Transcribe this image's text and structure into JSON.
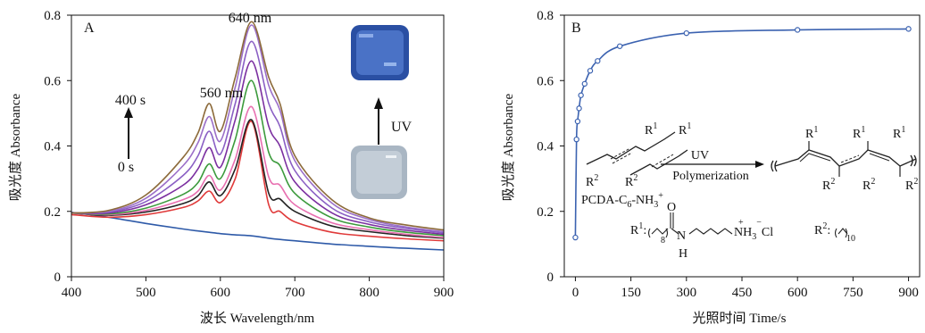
{
  "chart_data": [
    {
      "panel": "A",
      "type": "line",
      "xlabel": "波长 Wavelength/nm",
      "ylabel": "吸光度 Absorbance",
      "xlim": [
        400,
        900
      ],
      "ylim": [
        0,
        0.8
      ],
      "xticks": [
        "400",
        "500",
        "600",
        "700",
        "800",
        "900"
      ],
      "yticks": [
        "0",
        "0.2",
        "0.4",
        "0.6",
        "0.8"
      ],
      "annotations": {
        "peak_640": "640 nm",
        "peak_560": "560 nm",
        "time_top": "400 s",
        "time_bottom": "0 s",
        "uv": "UV"
      },
      "x": [
        400,
        450,
        500,
        550,
        570,
        585,
        600,
        620,
        642,
        665,
        680,
        700,
        750,
        800,
        850,
        900
      ],
      "series": [
        {
          "color": "#2E5AA8",
          "values": [
            0.197,
            0.182,
            0.163,
            0.146,
            0.14,
            0.136,
            0.132,
            0.128,
            0.125,
            0.118,
            0.114,
            0.11,
            0.1,
            0.093,
            0.087,
            0.082
          ]
        },
        {
          "color": "#E03A3A",
          "values": [
            0.19,
            0.182,
            0.19,
            0.212,
            0.232,
            0.262,
            0.227,
            0.3,
            0.475,
            0.22,
            0.2,
            0.168,
            0.136,
            0.124,
            0.116,
            0.11
          ]
        },
        {
          "color": "#222222",
          "values": [
            0.195,
            0.188,
            0.198,
            0.224,
            0.248,
            0.29,
            0.248,
            0.33,
            0.48,
            0.255,
            0.238,
            0.2,
            0.155,
            0.138,
            0.126,
            0.118
          ]
        },
        {
          "color": "#E86FB0",
          "values": [
            0.195,
            0.19,
            0.203,
            0.236,
            0.262,
            0.31,
            0.265,
            0.36,
            0.52,
            0.305,
            0.28,
            0.22,
            0.165,
            0.144,
            0.13,
            0.12
          ]
        },
        {
          "color": "#3C9A3C",
          "values": [
            0.195,
            0.192,
            0.21,
            0.252,
            0.288,
            0.345,
            0.3,
            0.42,
            0.6,
            0.38,
            0.34,
            0.255,
            0.18,
            0.152,
            0.136,
            0.126
          ]
        },
        {
          "color": "#7B2FA0",
          "values": [
            0.195,
            0.195,
            0.22,
            0.28,
            0.33,
            0.395,
            0.335,
            0.48,
            0.66,
            0.46,
            0.4,
            0.29,
            0.195,
            0.16,
            0.142,
            0.13
          ]
        },
        {
          "color": "#8A5FC4",
          "values": [
            0.195,
            0.198,
            0.23,
            0.31,
            0.37,
            0.445,
            0.375,
            0.53,
            0.72,
            0.53,
            0.46,
            0.325,
            0.21,
            0.168,
            0.148,
            0.134
          ]
        },
        {
          "color": "#9B6FC8",
          "values": [
            0.195,
            0.2,
            0.24,
            0.34,
            0.41,
            0.49,
            0.415,
            0.58,
            0.77,
            0.585,
            0.51,
            0.355,
            0.225,
            0.175,
            0.152,
            0.138
          ]
        },
        {
          "color": "#8C6A3A",
          "values": [
            0.195,
            0.203,
            0.25,
            0.365,
            0.44,
            0.53,
            0.445,
            0.61,
            0.78,
            0.61,
            0.53,
            0.37,
            0.235,
            0.18,
            0.158,
            0.143
          ]
        }
      ],
      "legend": "none"
    },
    {
      "panel": "B",
      "type": "line",
      "xlabel": "光照时间 Time/s",
      "ylabel": "吸光度 Absorbance",
      "xlim": [
        -30,
        930
      ],
      "ylim": [
        0,
        0.8
      ],
      "xticks": [
        "0",
        "150",
        "300",
        "450",
        "600",
        "750",
        "900"
      ],
      "yticks": [
        "0",
        "0.2",
        "0.4",
        "0.6",
        "0.8"
      ],
      "x": [
        0,
        3,
        6,
        10,
        15,
        25,
        40,
        60,
        120,
        300,
        600,
        900
      ],
      "series": [
        {
          "color": "#3B62B0",
          "values": [
            0.12,
            0.42,
            0.475,
            0.515,
            0.555,
            0.59,
            0.63,
            0.66,
            0.705,
            0.745,
            0.755,
            0.758
          ]
        }
      ],
      "scheme": {
        "monomer_label": "PCDA-C",
        "monomer_sub1": "6",
        "monomer_mid": "-NH",
        "monomer_sub2": "3",
        "monomer_sup": "+",
        "arrow_top": "UV",
        "arrow_bottom": "Polymerization",
        "r1": "R",
        "r2": "R",
        "sup1": "1",
        "sup2": "2",
        "r1_def_label": "R",
        "nh3cl": "NH",
        "nh3cl_sub": "3",
        "nh3cl_tail": "Cl",
        "plus": "+",
        "minus": "−",
        "carbonyl_o": "O",
        "amide_n": "N",
        "amide_h": "H",
        "sub8": "8",
        "sub10": "10"
      },
      "legend": "none"
    }
  ]
}
